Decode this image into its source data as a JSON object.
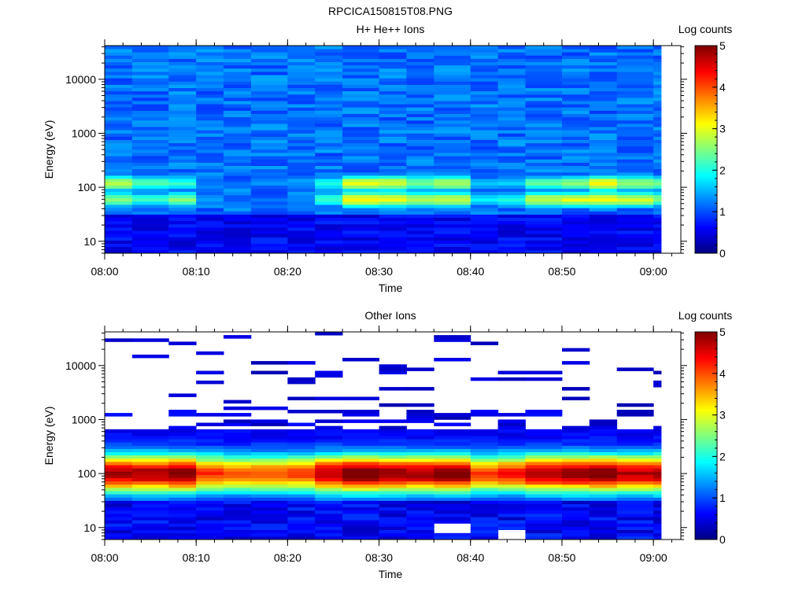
{
  "figure_title": "RPCICA150815T08.PNG",
  "chart_data": [
    {
      "type": "heatmap",
      "title": "H+ He++ Ions",
      "xlabel": "Time",
      "ylabel": "Energy (eV)",
      "yscale": "log",
      "ylim": [
        6,
        42000
      ],
      "x_ticks": [
        "08:00",
        "08:10",
        "08:20",
        "08:30",
        "08:40",
        "08:50",
        "09:00"
      ],
      "y_ticks": [
        "10",
        "100",
        "1000",
        "10000"
      ],
      "colorbar": {
        "label": "Log counts",
        "range": [
          0,
          5
        ],
        "ticks": [
          "0",
          "1",
          "2",
          "3",
          "4",
          "5"
        ],
        "colormap": "jet"
      },
      "time_range": [
        "08:00",
        "09:03"
      ],
      "sweep_times": [
        "08:00",
        "08:03",
        "08:07",
        "08:10",
        "08:13",
        "08:16",
        "08:20",
        "08:23",
        "08:26",
        "08:30",
        "08:33",
        "08:36",
        "08:40",
        "08:43",
        "08:46",
        "08:50",
        "08:53",
        "08:56",
        "09:00"
      ],
      "energy_range_eV": [
        6,
        42000
      ],
      "band_peaks": [
        {
          "energy_eV": 120,
          "log_counts": [
            2.7,
            2.2,
            2.0,
            1.1,
            0.9,
            1.2,
            1.3,
            1.9,
            2.9,
            2.8,
            2.4,
            2.6,
            1.5,
            1.6,
            2.2,
            2.4,
            3.0,
            2.5,
            2.3
          ]
        },
        {
          "energy_eV": 60,
          "log_counts": [
            2.4,
            2.0,
            2.4,
            1.3,
            1.0,
            1.1,
            1.2,
            2.0,
            3.1,
            2.9,
            2.6,
            2.8,
            1.7,
            1.9,
            2.7,
            2.9,
            3.0,
            2.8,
            2.4
          ]
        }
      ]
    },
    {
      "type": "heatmap",
      "title": "Other Ions",
      "xlabel": "Time",
      "ylabel": "Energy (eV)",
      "yscale": "log",
      "ylim": [
        6,
        42000
      ],
      "x_ticks": [
        "08:00",
        "08:10",
        "08:20",
        "08:30",
        "08:40",
        "08:50",
        "09:00"
      ],
      "y_ticks": [
        "10",
        "100",
        "1000",
        "10000"
      ],
      "colorbar": {
        "label": "Log counts",
        "range": [
          0,
          5
        ],
        "ticks": [
          "0",
          "1",
          "2",
          "3",
          "4",
          "5"
        ],
        "colormap": "jet"
      },
      "time_range": [
        "08:00",
        "09:03"
      ],
      "sweep_times": [
        "08:00",
        "08:03",
        "08:07",
        "08:10",
        "08:13",
        "08:16",
        "08:20",
        "08:23",
        "08:26",
        "08:30",
        "08:33",
        "08:36",
        "08:40",
        "08:43",
        "08:46",
        "08:50",
        "08:53",
        "08:56",
        "09:00"
      ],
      "energy_range_eV": [
        6,
        42000
      ],
      "band_peaks": [
        {
          "energy_eV": 100,
          "log_counts": [
            4.3,
            4.3,
            4.5,
            3.6,
            3.3,
            3.4,
            3.5,
            4.2,
            4.6,
            4.4,
            4.3,
            4.5,
            3.5,
            3.8,
            4.3,
            4.4,
            4.5,
            4.2,
            4.3
          ]
        }
      ]
    }
  ]
}
